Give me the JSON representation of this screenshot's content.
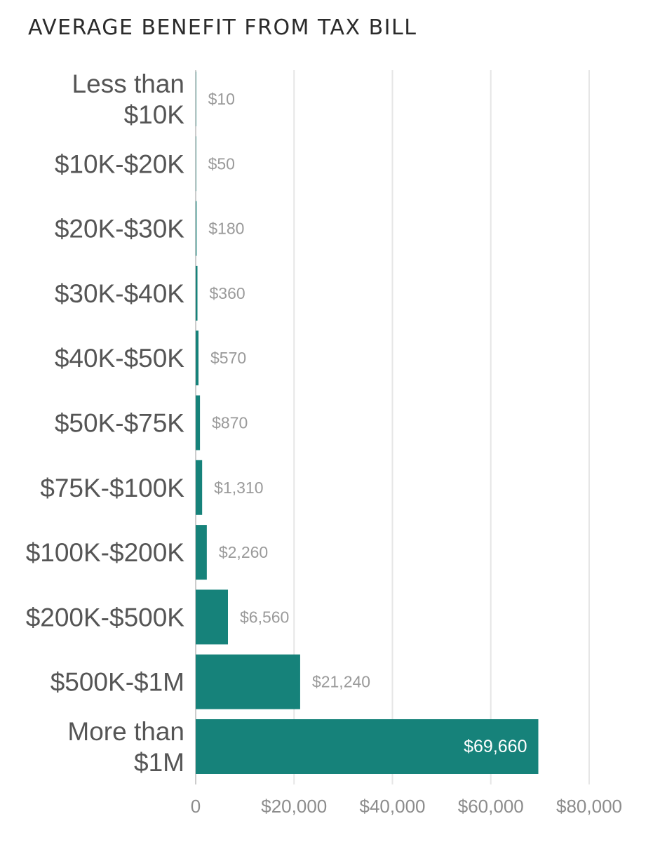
{
  "chart_data": {
    "type": "bar",
    "orientation": "horizontal",
    "title": "AVERAGE BENEFIT FROM TAX BILL",
    "categories": [
      [
        "Less than",
        "$10K"
      ],
      [
        "$10K-$20K"
      ],
      [
        "$20K-$30K"
      ],
      [
        "$30K-$40K"
      ],
      [
        "$40K-$50K"
      ],
      [
        "$50K-$75K"
      ],
      [
        "$75K-$100K"
      ],
      [
        "$100K-$200K"
      ],
      [
        "$200K-$500K"
      ],
      [
        "$500K-$1M"
      ],
      [
        "More than",
        "$1M"
      ]
    ],
    "values": [
      10,
      50,
      180,
      360,
      570,
      870,
      1310,
      2260,
      6560,
      21240,
      69660
    ],
    "value_labels": [
      "$10",
      "$50",
      "$180",
      "$360",
      "$570",
      "$870",
      "$1,310",
      "$2,260",
      "$6,560",
      "$21,240",
      "$69,660"
    ],
    "xlim": [
      0,
      80000
    ],
    "xticks": [
      0,
      20000,
      40000,
      60000,
      80000
    ],
    "xtick_labels": [
      "0",
      "$20,000",
      "$40,000",
      "$60,000",
      "$80,000"
    ],
    "grid": true,
    "bar_color": "#16827a"
  }
}
